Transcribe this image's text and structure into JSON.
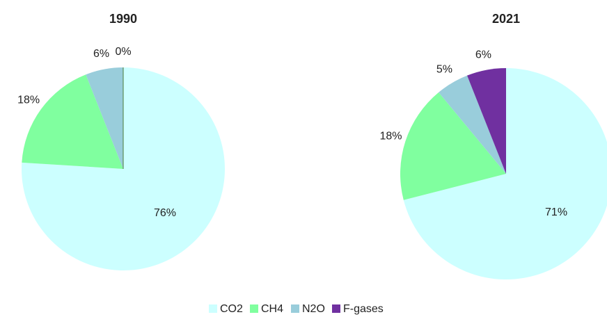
{
  "chart_data": [
    {
      "type": "pie",
      "title": "1990",
      "values": [
        76,
        18,
        6,
        0
      ],
      "value_labels": [
        "76%",
        "18%",
        "6%",
        "0%"
      ]
    },
    {
      "type": "pie",
      "title": "2021",
      "values": [
        71,
        18,
        5,
        6
      ],
      "value_labels": [
        "71%",
        "18%",
        "5%",
        "6%"
      ]
    }
  ],
  "legend": {
    "categories": [
      "CO2",
      "CH4",
      "N2O",
      "F-gases"
    ],
    "colors": [
      "#ccffff",
      "#80ff9f",
      "#99cddb",
      "#7030a0"
    ]
  }
}
